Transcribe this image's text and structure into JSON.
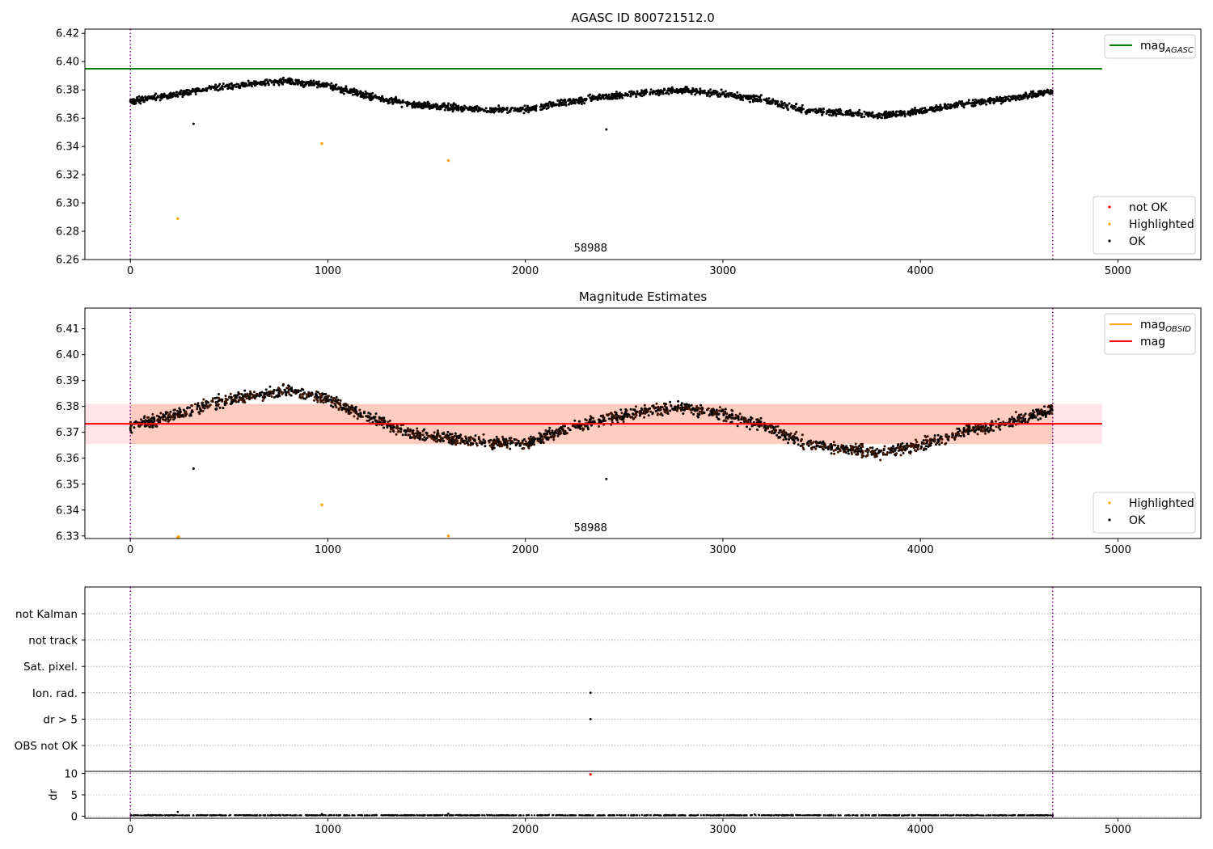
{
  "chart_data": [
    {
      "type": "scatter",
      "title": "AGASC ID 800721512.0",
      "xlim": [
        -230,
        5420
      ],
      "ylim": [
        6.26,
        6.423
      ],
      "xticks": [
        0,
        1000,
        2000,
        3000,
        4000,
        5000
      ],
      "yticks": [
        6.26,
        6.28,
        6.3,
        6.32,
        6.34,
        6.36,
        6.38,
        6.4,
        6.42
      ],
      "ytick_labels": [
        "6.26",
        "6.28",
        "6.30",
        "6.32",
        "6.34",
        "6.36",
        "6.38",
        "6.40",
        "6.42"
      ],
      "obs_label": {
        "text": "58988",
        "x": 2330
      },
      "obs_bounds": [
        0,
        4670
      ],
      "reference_lines": [
        {
          "name": "mag_AGASC",
          "value": 6.395,
          "x_range": [
            -230,
            4920
          ],
          "color": "#008000"
        }
      ],
      "series": [
        {
          "name": "OK",
          "color": "#000000",
          "baseline": {
            "x": [
              0,
              200,
              400,
              600,
              800,
              1000,
              1200,
              1400,
              1600,
              1800,
              2000,
              2200,
              2400,
              2600,
              2800,
              3000,
              3200,
              3400,
              3600,
              3800,
              4000,
              4200,
              4400,
              4600,
              4670
            ],
            "y": [
              6.372,
              6.376,
              6.381,
              6.384,
              6.386,
              6.383,
              6.376,
              6.37,
              6.368,
              6.366,
              6.366,
              6.371,
              6.375,
              6.378,
              6.38,
              6.377,
              6.373,
              6.366,
              6.364,
              6.362,
              6.365,
              6.37,
              6.373,
              6.377,
              6.379
            ],
            "scatter": 0.0022,
            "n": 2300
          },
          "points": [
            [
              320,
              6.356
            ],
            [
              2410,
              6.352
            ]
          ]
        },
        {
          "name": "Highlighted",
          "color": "#FFA500",
          "points": [
            [
              240,
              6.289
            ],
            [
              970,
              6.342
            ],
            [
              1610,
              6.33
            ]
          ]
        },
        {
          "name": "not OK",
          "color": "#FF0000",
          "points": []
        }
      ],
      "legends": [
        {
          "position": "upper right",
          "entries": [
            {
              "label": "mag",
              "sub": "AGASC",
              "kind": "line",
              "color": "#008000"
            }
          ]
        },
        {
          "position": "lower right",
          "entries": [
            {
              "label": "not OK",
              "kind": "point",
              "color": "#FF0000"
            },
            {
              "label": "Highlighted",
              "kind": "point",
              "color": "#FFA500"
            },
            {
              "label": "OK",
              "kind": "point",
              "color": "#000000"
            }
          ]
        }
      ]
    },
    {
      "type": "scatter",
      "title": "Magnitude Estimates",
      "xlim": [
        -230,
        5420
      ],
      "ylim": [
        6.329,
        6.418
      ],
      "xticks": [
        0,
        1000,
        2000,
        3000,
        4000,
        5000
      ],
      "yticks": [
        6.33,
        6.34,
        6.35,
        6.36,
        6.37,
        6.38,
        6.39,
        6.4,
        6.41
      ],
      "ytick_labels": [
        "6.33",
        "6.34",
        "6.35",
        "6.36",
        "6.37",
        "6.38",
        "6.39",
        "6.40",
        "6.41"
      ],
      "obs_label": {
        "text": "58988",
        "x": 2330
      },
      "obs_bounds": [
        0,
        4670
      ],
      "bands": [
        {
          "y_range": [
            6.3655,
            6.381
          ],
          "x_range": [
            -230,
            4920
          ],
          "color": "#FFC0CB",
          "opacity": 0.45
        },
        {
          "y_range": [
            6.3655,
            6.381
          ],
          "x_range": [
            0,
            4670
          ],
          "color": "#FFA07A",
          "opacity": 0.35
        }
      ],
      "reference_lines": [
        {
          "name": "mag",
          "value": 6.3733,
          "x_range": [
            -230,
            4920
          ],
          "color": "#FF0000"
        }
      ],
      "series": [
        {
          "name": "OK",
          "color": "#000000",
          "baseline": {
            "x": [
              0,
              200,
              400,
              600,
              800,
              1000,
              1200,
              1400,
              1600,
              1800,
              2000,
              2200,
              2400,
              2600,
              2800,
              3000,
              3200,
              3400,
              3600,
              3800,
              4000,
              4200,
              4400,
              4600,
              4670
            ],
            "y": [
              6.372,
              6.376,
              6.381,
              6.384,
              6.386,
              6.383,
              6.376,
              6.37,
              6.368,
              6.366,
              6.366,
              6.371,
              6.375,
              6.378,
              6.38,
              6.377,
              6.373,
              6.366,
              6.364,
              6.362,
              6.365,
              6.37,
              6.373,
              6.377,
              6.379
            ],
            "scatter": 0.0022,
            "n": 2300
          },
          "points": [
            [
              320,
              6.356
            ],
            [
              2410,
              6.352
            ]
          ]
        },
        {
          "name": "Highlighted",
          "color": "#FFA500",
          "points": [
            [
              970,
              6.342
            ],
            [
              1610,
              6.33
            ],
            [
              240,
              6.3295
            ],
            [
              245,
              6.3297
            ]
          ]
        }
      ],
      "legends": [
        {
          "position": "upper right",
          "entries": [
            {
              "label": "mag",
              "sub": "OBSID",
              "kind": "line",
              "color": "#FFA500"
            },
            {
              "label": "mag",
              "sub": "",
              "kind": "line",
              "color": "#FF0000"
            }
          ]
        },
        {
          "position": "lower right",
          "entries": [
            {
              "label": "Highlighted",
              "kind": "point",
              "color": "#FFA500"
            },
            {
              "label": "OK",
              "kind": "point",
              "color": "#000000"
            }
          ]
        }
      ]
    },
    {
      "type": "scatter",
      "title": "",
      "xlim": [
        -230,
        5420
      ],
      "xticks": [
        0,
        1000,
        2000,
        3000,
        4000,
        5000
      ],
      "flag_rows": [
        "not Kalman",
        "not track",
        "Sat. pixel.",
        "Ion. rad.",
        "dr > 5",
        "OBS not OK"
      ],
      "flag_points": [
        {
          "row": "Ion. rad.",
          "x": 2330
        },
        {
          "row": "dr > 5",
          "x": 2330
        }
      ],
      "obs_bounds": [
        0,
        4670
      ],
      "dr": {
        "ylabel": "dr",
        "ylim": [
          -0.5,
          10.5
        ],
        "yticks": [
          0,
          5,
          10
        ],
        "outlier": {
          "x": 2330,
          "y": 9.8,
          "color": "#FF0000"
        },
        "spikes": [
          [
            240,
            1.0
          ],
          [
            970,
            0.5
          ],
          [
            1610,
            0.6
          ],
          [
            3160,
            0.4
          ]
        ],
        "baseline_y": 0.15,
        "n": 1200
      }
    }
  ]
}
